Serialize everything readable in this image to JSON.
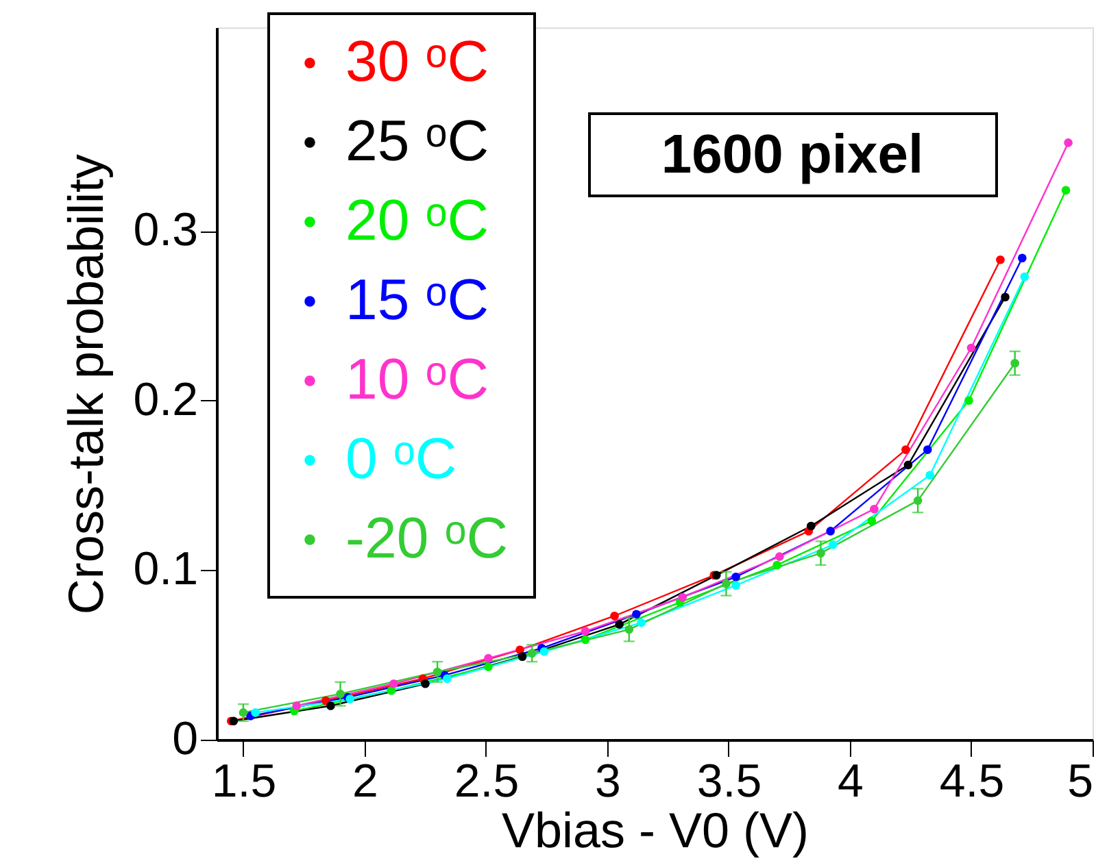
{
  "chart_data": {
    "type": "line",
    "xlabel": "Vbias - V0 (V)",
    "ylabel": "Cross-talk probability",
    "annotations": [
      "1600 pixel"
    ],
    "xlim": [
      1.39,
      5.0
    ],
    "xticks": [
      1.5,
      2,
      2.5,
      3,
      3.5,
      4,
      4.5,
      5
    ],
    "ylim": [
      0,
      0.42
    ],
    "yticks": [
      0,
      0.1,
      0.2,
      0.3
    ],
    "marker": "circle",
    "legend": "top left",
    "grid": false,
    "series": [
      {
        "name": "30 ᵒC",
        "color": "#ff0000",
        "x": [
          1.45,
          1.84,
          2.24,
          2.64,
          3.03,
          3.44,
          3.83,
          4.23,
          4.62
        ],
        "values": [
          0.011,
          0.023,
          0.036,
          0.053,
          0.073,
          0.097,
          0.123,
          0.171,
          0.283
        ]
      },
      {
        "name": "25 ᵒC",
        "color": "#000000",
        "x": [
          1.46,
          1.86,
          2.25,
          2.65,
          3.05,
          3.45,
          3.84,
          4.24,
          4.64
        ],
        "values": [
          0.011,
          0.02,
          0.033,
          0.049,
          0.068,
          0.097,
          0.126,
          0.162,
          0.261
        ]
      },
      {
        "name": "20 ᵒC",
        "color": "#00ee00",
        "x": [
          1.71,
          2.11,
          2.51,
          2.91,
          3.3,
          3.7,
          4.09,
          4.49,
          4.89
        ],
        "values": [
          0.017,
          0.029,
          0.043,
          0.059,
          0.081,
          0.103,
          0.129,
          0.2,
          0.324
        ]
      },
      {
        "name": "15 ᵒC",
        "color": "#0000ff",
        "x": [
          1.53,
          1.93,
          2.33,
          2.73,
          3.12,
          3.53,
          3.92,
          4.32,
          4.71
        ],
        "values": [
          0.014,
          0.025,
          0.038,
          0.054,
          0.074,
          0.096,
          0.123,
          0.171,
          0.284
        ]
      },
      {
        "name": "10 ᵒC",
        "color": "#ff33cc",
        "x": [
          1.72,
          2.12,
          2.51,
          2.91,
          3.31,
          3.71,
          4.1,
          4.5,
          4.9
        ],
        "values": [
          0.02,
          0.033,
          0.048,
          0.064,
          0.084,
          0.108,
          0.136,
          0.231,
          0.352
        ]
      },
      {
        "name": "  0 ᵒC",
        "color": "#00ffff",
        "x": [
          1.55,
          1.94,
          2.34,
          2.74,
          3.14,
          3.53,
          3.93,
          4.33,
          4.72
        ],
        "values": [
          0.016,
          0.024,
          0.036,
          0.052,
          0.069,
          0.091,
          0.115,
          0.156,
          0.273
        ]
      },
      {
        "name": "-20 ᵒC",
        "color": "#33cc33",
        "x": [
          1.5,
          1.9,
          2.3,
          2.69,
          3.09,
          3.49,
          3.88,
          4.28,
          4.68
        ],
        "values": [
          0.016,
          0.027,
          0.04,
          0.051,
          0.065,
          0.092,
          0.11,
          0.141,
          0.222
        ],
        "errors": [
          0.005,
          0.007,
          0.006,
          0.005,
          0.007,
          0.007,
          0.007,
          0.007,
          0.007
        ]
      }
    ]
  }
}
